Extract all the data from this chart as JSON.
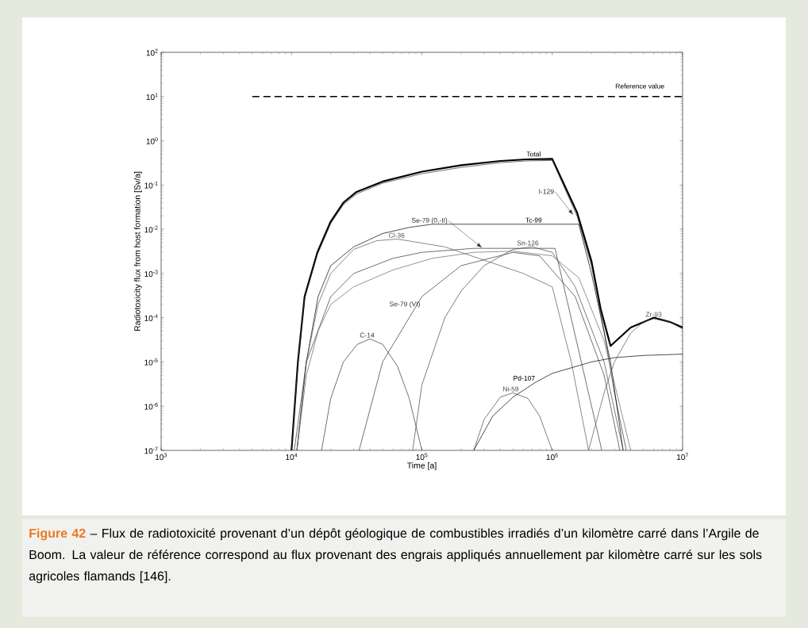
{
  "chart_data": {
    "type": "line",
    "log": "xy",
    "xlabel": "Time [a]",
    "ylabel": "Radiotoxicity flux from host formation [Sv/a]",
    "xlim": [
      1000,
      10000000
    ],
    "ylim": [
      1e-07,
      100
    ],
    "xticks": [
      {
        "value": 1000,
        "label": "10$^{3}$"
      },
      {
        "value": 10000,
        "label": "10$^{4}$"
      },
      {
        "value": 100000,
        "label": "10$^{5}$"
      },
      {
        "value": 1000000,
        "label": "10$^{6}$"
      },
      {
        "value": 10000000,
        "label": "10$^{7}$"
      }
    ],
    "yticks": [
      {
        "value": 1e-07,
        "label": "10$^{-7}$"
      },
      {
        "value": 1e-06,
        "label": "10$^{-6}$"
      },
      {
        "value": 1e-05,
        "label": "10$^{-5}$"
      },
      {
        "value": 0.0001,
        "label": "10$^{-4}$"
      },
      {
        "value": 0.001,
        "label": "10$^{-3}$"
      },
      {
        "value": 0.01,
        "label": "10$^{-2}$"
      },
      {
        "value": 0.1,
        "label": "10$^{-1}$"
      },
      {
        "value": 1,
        "label": "10$^{0}$"
      },
      {
        "value": 10,
        "label": "10$^{1}$"
      },
      {
        "value": 100,
        "label": "10$^{2}$"
      }
    ],
    "series": [
      {
        "name": "Total",
        "color": "#000000",
        "x": [
          10000,
          11200,
          12600,
          15800,
          20000,
          25000,
          31600,
          50000,
          100000,
          200000,
          400000,
          630000,
          1000000,
          1550000,
          2000000,
          2350000,
          2800000,
          4000000,
          6000000,
          8000000,
          10000000
        ],
        "values": [
          1e-07,
          1e-05,
          0.0003,
          0.003,
          0.015,
          0.04,
          0.07,
          0.12,
          0.2,
          0.28,
          0.35,
          0.38,
          0.39,
          0.024,
          0.0019,
          0.00016,
          2.3e-05,
          6e-05,
          0.0001,
          8e-05,
          6e-05
        ]
      },
      {
        "name": "I-129",
        "color": "#333333",
        "x": [
          10000,
          11200,
          12600,
          15800,
          20000,
          25000,
          31600,
          50000,
          100000,
          200000,
          400000,
          630000,
          1000000,
          1550000,
          2000000,
          2500000,
          3000000,
          3700000
        ],
        "values": [
          1e-07,
          9e-06,
          0.00027,
          0.0027,
          0.0135,
          0.036,
          0.063,
          0.11,
          0.18,
          0.25,
          0.32,
          0.35,
          0.36,
          0.02,
          0.0015,
          5e-05,
          2e-06,
          1e-07
        ]
      },
      {
        "name": "Tc-99",
        "color": "#000000",
        "x": [
          11000,
          13000,
          16000,
          20000,
          30000,
          50000,
          80000,
          120000,
          1600000,
          2000000,
          2800000,
          3500000
        ],
        "values": [
          1e-07,
          1e-05,
          0.0003,
          0.0015,
          0.004,
          0.008,
          0.011,
          0.013,
          0.013,
          0.001,
          1e-05,
          1e-07
        ]
      },
      {
        "name": "Se-79 (0,-II)",
        "color": "#333333",
        "x": [
          10500,
          13000,
          20000,
          30000,
          60000,
          100000,
          250000,
          1050000,
          2400000
        ],
        "values": [
          1e-07,
          1e-05,
          0.0003,
          0.001,
          0.0022,
          0.003,
          0.0037,
          0.0037,
          1e-07
        ]
      },
      {
        "name": "Cl-36",
        "color": "#555555",
        "x": [
          11000,
          13000,
          16000,
          20000,
          30000,
          45000,
          65000,
          150000,
          300000,
          600000,
          1000000,
          1400000,
          1900000
        ],
        "values": [
          1e-07,
          1e-05,
          0.0002,
          0.001,
          0.0035,
          0.0055,
          0.006,
          0.004,
          0.002,
          0.001,
          0.0005,
          1e-05,
          1e-07
        ]
      },
      {
        "name": "Sn-126",
        "color": "#444444",
        "x": [
          85000,
          100000,
          150000,
          200000,
          300000,
          500000,
          700000,
          1000000,
          1500000,
          2500000,
          3500000
        ],
        "values": [
          1e-07,
          3e-06,
          0.0001,
          0.0004,
          0.0015,
          0.0035,
          0.004,
          0.003,
          0.0005,
          1e-05,
          1e-07
        ]
      },
      {
        "name": "Se-79 (VI)",
        "color": "#333333",
        "x": [
          33000,
          50000,
          100000,
          200000,
          500000,
          800000,
          1500000,
          2500000,
          3300000
        ],
        "values": [
          1e-07,
          1e-05,
          0.0003,
          0.0015,
          0.003,
          0.0025,
          0.0003,
          5e-06,
          1e-07
        ]
      },
      {
        "name": "C-14",
        "color": "#333333",
        "x": [
          17000,
          20000,
          25000,
          32000,
          40000,
          50000,
          65000,
          80000,
          100000
        ],
        "values": [
          1e-07,
          1.5e-06,
          1e-05,
          2.5e-05,
          3.3e-05,
          2.5e-05,
          8e-06,
          1.5e-06,
          1e-07
        ]
      },
      {
        "name": "Ni-59",
        "color": "#444444",
        "x": [
          250000,
          300000,
          400000,
          500000,
          650000,
          800000,
          1000000
        ],
        "values": [
          1e-07,
          5e-07,
          1.6e-06,
          2e-06,
          1.5e-06,
          6e-07,
          1e-07
        ]
      },
      {
        "name": "Pd-107",
        "color": "#000000",
        "x": [
          250000,
          350000,
          500000,
          750000,
          1000000,
          2000000,
          3000000,
          5000000,
          10000000
        ],
        "values": [
          1e-07,
          6e-07,
          1.6e-06,
          3.5e-06,
          5.5e-06,
          1e-05,
          1.25e-05,
          1.4e-05,
          1.5e-05
        ]
      },
      {
        "name": "Zr-93",
        "color": "#555555",
        "x": [
          1900000,
          2500000,
          3000000,
          4000000,
          5000000,
          6000000,
          8000000,
          10000000
        ],
        "values": [
          1e-07,
          2e-06,
          1e-05,
          4.5e-05,
          8e-05,
          9.5e-05,
          8e-05,
          5.5e-05
        ]
      },
      {
        "color": "#666666",
        "x": [
          11000,
          13000,
          16000,
          20000,
          30000,
          60000,
          120000,
          250000,
          500000,
          1000000,
          1600000,
          2500000,
          4000000
        ],
        "values": [
          1e-07,
          5e-06,
          5e-05,
          0.0002,
          0.0005,
          0.0012,
          0.0022,
          0.003,
          0.0032,
          0.0025,
          0.0008,
          3e-05,
          1e-07
        ]
      },
      {
        "name": "Reference value",
        "color": "#000000",
        "line_style": "dashed",
        "x": [
          5000,
          10000000
        ],
        "values": [
          10,
          10
        ]
      }
    ],
    "annotations": [
      "Figure 42",
      "– Flux de radiotoxicité provenant d’un dépôt géologique de combustibles irradiés d’un kilomètre carré dans l’Argile de Boom. La valeur de référence correspond au flux provenant des engrais appliqués annuellement par kilomètre carré sur les sols agricoles flamands [146]."
    ]
  }
}
